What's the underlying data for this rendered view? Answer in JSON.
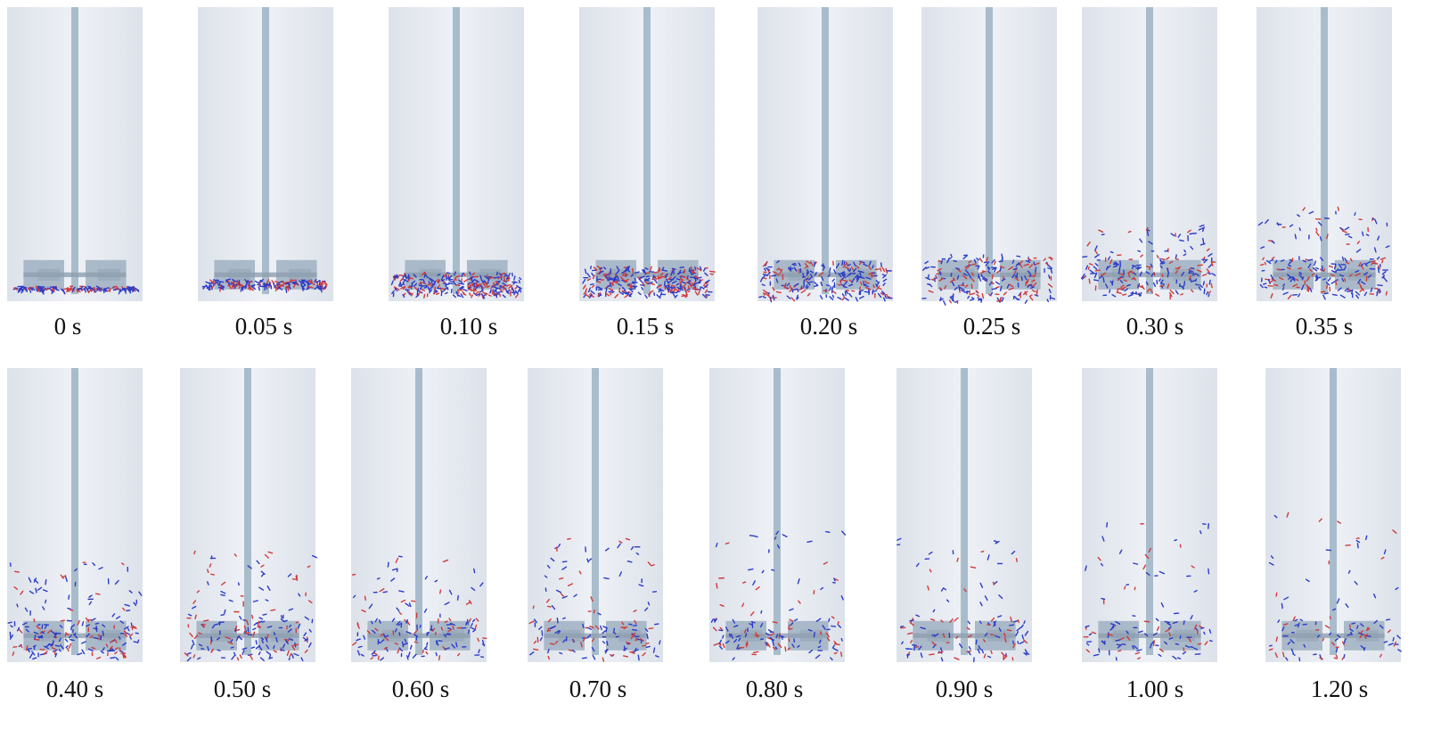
{
  "frames": [
    {
      "label": "0 s"
    },
    {
      "label": "0.05 s"
    },
    {
      "label": "0.10 s"
    },
    {
      "label": "0.15 s"
    },
    {
      "label": "0.20 s"
    },
    {
      "label": "0.25 s"
    },
    {
      "label": "0.30 s"
    },
    {
      "label": "0.35 s"
    },
    {
      "label": "0.40 s"
    },
    {
      "label": "0.50 s"
    },
    {
      "label": "0.60 s"
    },
    {
      "label": "0.70 s"
    },
    {
      "label": "0.80 s"
    },
    {
      "label": "0.90 s"
    },
    {
      "label": "1.00 s"
    },
    {
      "label": "1.20 s"
    }
  ],
  "colors": {
    "vessel_fill": "#eef1f6",
    "vessel_edge": "#dde2ea",
    "shaft": "#a9bccb",
    "impeller": "#a3b4c4",
    "impeller_dark": "#8e9fb0",
    "particle_blue": "#2b3bc9",
    "particle_red": "#d03a3a"
  }
}
